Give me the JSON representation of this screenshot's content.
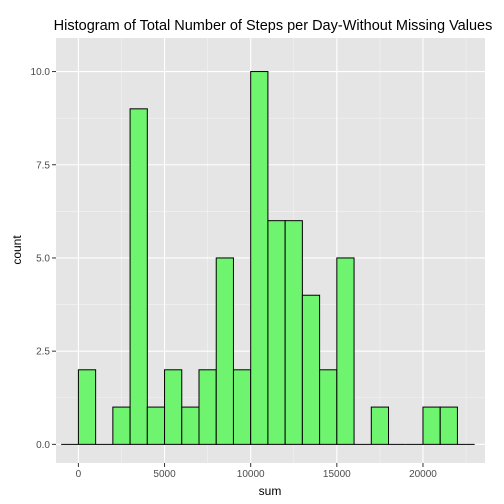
{
  "chart_data": {
    "type": "bar",
    "title": "Histogram of Total Number of Steps per Day-Without Missing Values",
    "xlabel": "sum",
    "ylabel": "count",
    "xlim": [
      -1300,
      23600
    ],
    "ylim": [
      -0.5,
      10.9
    ],
    "xticks": [
      0,
      5000,
      10000,
      15000,
      20000
    ],
    "xtick_labels": [
      "0",
      "5000",
      "10000",
      "15000",
      "20000"
    ],
    "yticks": [
      0,
      2.5,
      5,
      7.5,
      10
    ],
    "ytick_labels": [
      "0.0",
      "2.5",
      "5.0",
      "7.5",
      "10.0"
    ],
    "bin_width": 1000,
    "bins": [
      {
        "x0": -1000,
        "x1": 0,
        "count": 0
      },
      {
        "x0": 0,
        "x1": 1000,
        "count": 2
      },
      {
        "x0": 1000,
        "x1": 2000,
        "count": 0
      },
      {
        "x0": 2000,
        "x1": 3000,
        "count": 1
      },
      {
        "x0": 3000,
        "x1": 4000,
        "count": 9
      },
      {
        "x0": 4000,
        "x1": 5000,
        "count": 1
      },
      {
        "x0": 5000,
        "x1": 6000,
        "count": 2
      },
      {
        "x0": 6000,
        "x1": 7000,
        "count": 1
      },
      {
        "x0": 7000,
        "x1": 8000,
        "count": 2
      },
      {
        "x0": 8000,
        "x1": 9000,
        "count": 5
      },
      {
        "x0": 9000,
        "x1": 10000,
        "count": 2
      },
      {
        "x0": 10000,
        "x1": 11000,
        "count": 10
      },
      {
        "x0": 11000,
        "x1": 12000,
        "count": 6
      },
      {
        "x0": 12000,
        "x1": 13000,
        "count": 6
      },
      {
        "x0": 13000,
        "x1": 14000,
        "count": 4
      },
      {
        "x0": 14000,
        "x1": 15000,
        "count": 2
      },
      {
        "x0": 15000,
        "x1": 16000,
        "count": 5
      },
      {
        "x0": 16000,
        "x1": 17000,
        "count": 0
      },
      {
        "x0": 17000,
        "x1": 18000,
        "count": 1
      },
      {
        "x0": 18000,
        "x1": 19000,
        "count": 0
      },
      {
        "x0": 19000,
        "x1": 20000,
        "count": 0
      },
      {
        "x0": 20000,
        "x1": 21000,
        "count": 1
      },
      {
        "x0": 21000,
        "x1": 22000,
        "count": 1
      },
      {
        "x0": 22000,
        "x1": 23000,
        "count": 0
      }
    ],
    "grid": true,
    "legend": "none",
    "colors": {
      "bar_fill": "#6ef46e",
      "bar_outline": "#000000",
      "panel_background": "#e5e5e5",
      "gridline": "#ffffff",
      "tick_label": "#4d4d4d"
    }
  }
}
